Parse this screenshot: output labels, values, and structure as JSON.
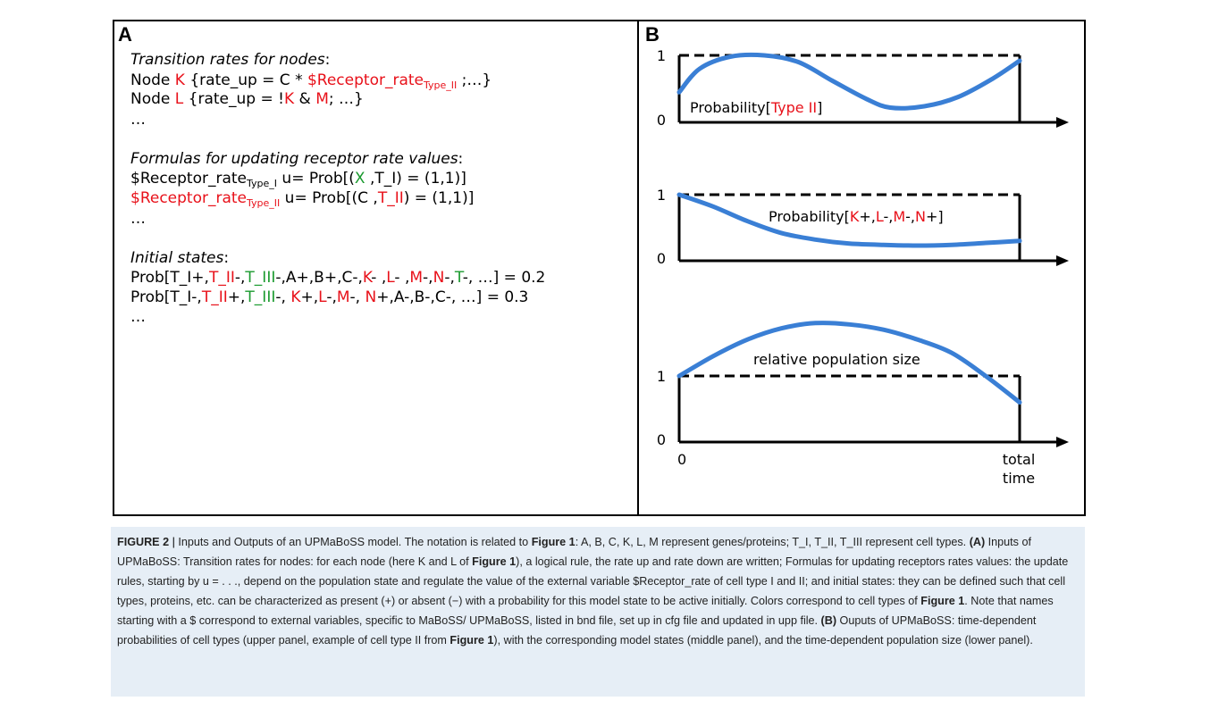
{
  "panel_a": {
    "letter": "A",
    "lines": [
      [
        {
          "t": "Transition rates for nodes",
          "c": "it"
        },
        {
          "t": ":",
          "c": ""
        }
      ],
      [
        {
          "t": "Node ",
          "c": ""
        },
        {
          "t": "K",
          "c": "r"
        },
        {
          "t": " {rate_up = C * ",
          "c": ""
        },
        {
          "t": "$Receptor_rate",
          "c": "r"
        },
        {
          "t": "Type_II",
          "c": "r sub"
        },
        {
          "t": " ;…}",
          "c": ""
        }
      ],
      [
        {
          "t": "Node ",
          "c": ""
        },
        {
          "t": "L",
          "c": "r"
        },
        {
          "t": " {rate_up  = !",
          "c": ""
        },
        {
          "t": "K",
          "c": "r"
        },
        {
          "t": " & ",
          "c": ""
        },
        {
          "t": "M",
          "c": "r"
        },
        {
          "t": "; …}",
          "c": ""
        }
      ],
      [
        {
          "t": "…",
          "c": ""
        }
      ],
      [
        {
          "t": "",
          "c": ""
        }
      ],
      [
        {
          "t": "Formulas for updating receptor rate values",
          "c": "it"
        },
        {
          "t": ":",
          "c": ""
        }
      ],
      [
        {
          "t": "$Receptor_rate",
          "c": ""
        },
        {
          "t": "Type_I",
          "c": "sub"
        },
        {
          "t": " u= Prob[(",
          "c": ""
        },
        {
          "t": "X",
          "c": "g"
        },
        {
          "t": " ,T_I) = (1,1)]",
          "c": ""
        }
      ],
      [
        {
          "t": "$Receptor_rate",
          "c": "r"
        },
        {
          "t": "Type_II",
          "c": "r sub"
        },
        {
          "t": " u= Prob[(C ,",
          "c": ""
        },
        {
          "t": "T_II",
          "c": "r"
        },
        {
          "t": ") = (1,1)]",
          "c": ""
        }
      ],
      [
        {
          "t": "…",
          "c": ""
        }
      ],
      [
        {
          "t": "",
          "c": ""
        }
      ],
      [
        {
          "t": "Initial states",
          "c": "it"
        },
        {
          "t": ":",
          "c": ""
        }
      ],
      [
        {
          "t": "Prob[T_I+,",
          "c": ""
        },
        {
          "t": "T_II",
          "c": "r"
        },
        {
          "t": "-,",
          "c": ""
        },
        {
          "t": "T_III",
          "c": "g"
        },
        {
          "t": "-,A+,B+,C-,",
          "c": ""
        },
        {
          "t": "K",
          "c": "r"
        },
        {
          "t": "- ,",
          "c": ""
        },
        {
          "t": "L",
          "c": "r"
        },
        {
          "t": "- ,",
          "c": ""
        },
        {
          "t": "M",
          "c": "r"
        },
        {
          "t": "-,",
          "c": ""
        },
        {
          "t": "N",
          "c": "r"
        },
        {
          "t": "-,",
          "c": ""
        },
        {
          "t": "T",
          "c": "g"
        },
        {
          "t": "-, …] = 0.2",
          "c": ""
        }
      ],
      [
        {
          "t": "Prob[T_I-,",
          "c": ""
        },
        {
          "t": "T_II",
          "c": "r"
        },
        {
          "t": "+,",
          "c": ""
        },
        {
          "t": "T_III",
          "c": "g"
        },
        {
          "t": "-, ",
          "c": ""
        },
        {
          "t": "K",
          "c": "r"
        },
        {
          "t": "+,",
          "c": ""
        },
        {
          "t": "L",
          "c": "r"
        },
        {
          "t": "-,",
          "c": ""
        },
        {
          "t": "M",
          "c": "r"
        },
        {
          "t": "-, ",
          "c": ""
        },
        {
          "t": "N",
          "c": "r"
        },
        {
          "t": "+,A-,B-,C-, …] = 0.3",
          "c": ""
        }
      ],
      [
        {
          "t": "…",
          "c": ""
        }
      ]
    ]
  },
  "panel_b": {
    "letter": "B",
    "upper": {
      "y_top": "1",
      "y_bottom": "0",
      "label": [
        {
          "t": "Probability[",
          "c": ""
        },
        {
          "t": "Type II",
          "c": "r"
        },
        {
          "t": "]",
          "c": ""
        }
      ],
      "curve": [
        [
          0,
          0.45
        ],
        [
          0.06,
          0.8
        ],
        [
          0.15,
          0.98
        ],
        [
          0.25,
          1.0
        ],
        [
          0.35,
          0.9
        ],
        [
          0.45,
          0.62
        ],
        [
          0.55,
          0.35
        ],
        [
          0.62,
          0.22
        ],
        [
          0.72,
          0.24
        ],
        [
          0.82,
          0.38
        ],
        [
          0.92,
          0.65
        ],
        [
          1.0,
          0.92
        ]
      ]
    },
    "middle": {
      "y_top": "1",
      "y_bottom": "0",
      "label": [
        {
          "t": "Probability[",
          "c": ""
        },
        {
          "t": "K",
          "c": "r"
        },
        {
          "t": "+,",
          "c": ""
        },
        {
          "t": "L",
          "c": "r"
        },
        {
          "t": "-,",
          "c": ""
        },
        {
          "t": "M",
          "c": "r"
        },
        {
          "t": "-,",
          "c": ""
        },
        {
          "t": "N",
          "c": "r"
        },
        {
          "t": "+]",
          "c": ""
        }
      ],
      "curve": [
        [
          0,
          1.0
        ],
        [
          0.1,
          0.82
        ],
        [
          0.2,
          0.6
        ],
        [
          0.3,
          0.42
        ],
        [
          0.4,
          0.32
        ],
        [
          0.5,
          0.26
        ],
        [
          0.6,
          0.24
        ],
        [
          0.7,
          0.23
        ],
        [
          0.8,
          0.24
        ],
        [
          0.9,
          0.27
        ],
        [
          1.0,
          0.3
        ]
      ]
    },
    "lower": {
      "y_top": "1",
      "y_bottom": "0",
      "label": [
        {
          "t": "relative population size",
          "c": ""
        }
      ],
      "x_start": "0",
      "x_end_line1": "total",
      "x_end_line2": "time",
      "curve": [
        [
          0,
          1.0
        ],
        [
          0.1,
          1.3
        ],
        [
          0.2,
          1.55
        ],
        [
          0.3,
          1.72
        ],
        [
          0.4,
          1.8
        ],
        [
          0.5,
          1.78
        ],
        [
          0.6,
          1.7
        ],
        [
          0.7,
          1.55
        ],
        [
          0.8,
          1.35
        ],
        [
          0.9,
          1.0
        ],
        [
          1.0,
          0.6
        ]
      ]
    }
  },
  "caption": {
    "label": "FIGURE 2",
    "sep": " | ",
    "parts": [
      {
        "t": "Inputs and Outputs of an UPMaBoSS model. The notation is related to ",
        "b": false
      },
      {
        "t": "Figure 1",
        "b": true
      },
      {
        "t": ": A, B, C, K, L, M represent genes/proteins; T_I, T_II, T_III represent cell types. ",
        "b": false
      },
      {
        "t": "(A)",
        "b": true
      },
      {
        "t": " Inputs of UPMaBoSS: Transition rates for nodes: for each node (here K and L of ",
        "b": false
      },
      {
        "t": "Figure 1",
        "b": true
      },
      {
        "t": "), a logical rule, the rate up and rate down are written; Formulas for updating receptors rates values: the update rules, starting by u = . . ., depend on the population state and regulate the value of the external variable $Receptor_rate of cell type I and II; and initial states: they can be defined such that cell types, proteins, etc. can be characterized as present (+) or absent (−) with a probability for this model state to be active initially. Colors correspond to cell types of ",
        "b": false
      },
      {
        "t": "Figure 1",
        "b": true
      },
      {
        "t": ". Note that names starting with a $ correspond to external variables, specific to MaBoSS/ UPMaBoSS, listed in bnd file, set up in cfg file and updated in upp file. ",
        "b": false
      },
      {
        "t": "(B)",
        "b": true
      },
      {
        "t": " Ouputs of UPMaBoSS: time-dependent probabilities of cell types (upper panel, example of cell type II from ",
        "b": false
      },
      {
        "t": "Figure 1",
        "b": true
      },
      {
        "t": "), with the corresponding model states (middle panel), and the time-dependent population size (lower panel).",
        "b": false
      }
    ]
  },
  "colors": {
    "red": "#e8111a",
    "green": "#1a9a2e",
    "curve": "#3a7fd5",
    "caption_bg": "#e6eef6"
  }
}
